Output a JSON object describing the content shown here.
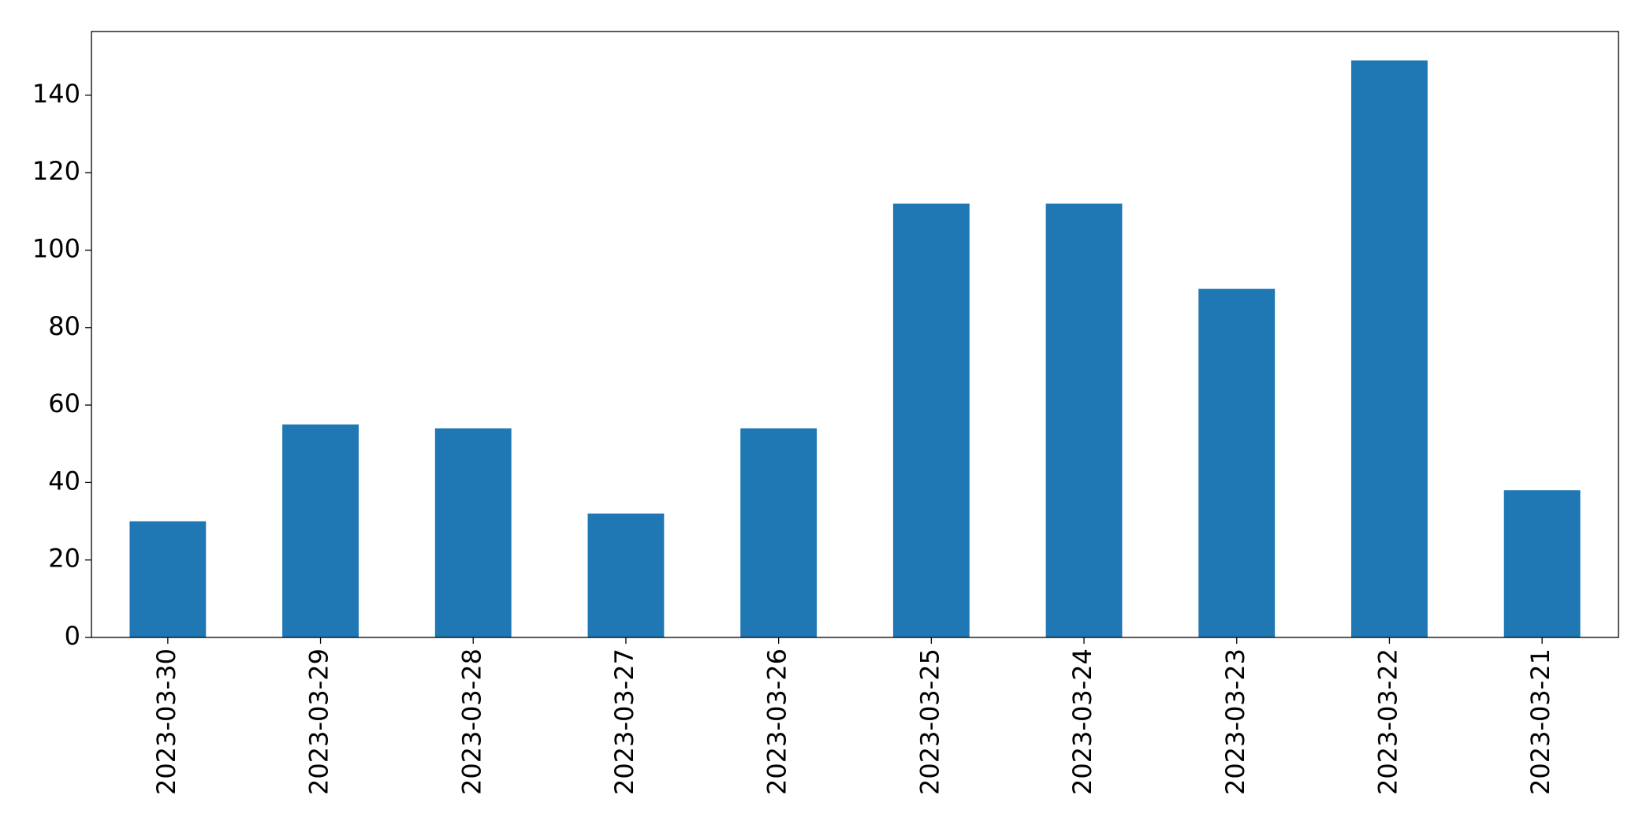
{
  "chart_data": {
    "type": "bar",
    "categories": [
      "2023-03-30",
      "2023-03-29",
      "2023-03-28",
      "2023-03-27",
      "2023-03-26",
      "2023-03-25",
      "2023-03-24",
      "2023-03-23",
      "2023-03-22",
      "2023-03-21"
    ],
    "values": [
      30,
      55,
      54,
      32,
      54,
      112,
      112,
      90,
      149,
      38
    ],
    "color": "#1f77b4",
    "ylim": [
      0,
      156.45
    ],
    "yticks": [
      0,
      20,
      40,
      60,
      80,
      100,
      120,
      140
    ],
    "grid": false
  }
}
